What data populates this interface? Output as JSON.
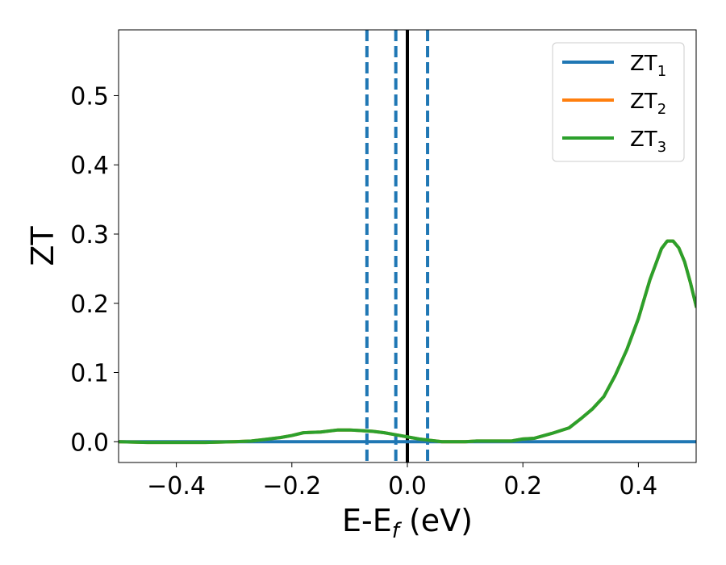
{
  "chart_data": {
    "type": "line",
    "title": "",
    "xlabel": {
      "main": "E-E",
      "sub": "f",
      "unit": " (eV)"
    },
    "ylabel": "ZT",
    "xlim": [
      -0.5,
      0.5
    ],
    "ylim": [
      -0.03,
      0.595
    ],
    "xticks": [
      -0.4,
      -0.2,
      0.0,
      0.2,
      0.4
    ],
    "xtick_labels": [
      "−0.4",
      "−0.2",
      "0.0",
      "0.2",
      "0.4"
    ],
    "yticks": [
      0.0,
      0.1,
      0.2,
      0.3,
      0.4,
      0.5
    ],
    "ytick_labels": [
      "0.0",
      "0.1",
      "0.2",
      "0.3",
      "0.4",
      "0.5"
    ],
    "grid": false,
    "legend_position": "top-right",
    "vlines": [
      {
        "x": -0.07,
        "style": "dashed",
        "color": "#1f77b4"
      },
      {
        "x": -0.02,
        "style": "dashed",
        "color": "#1f77b4"
      },
      {
        "x": 0.0,
        "style": "solid",
        "color": "#000000"
      },
      {
        "x": 0.035,
        "style": "dashed",
        "color": "#1f77b4"
      }
    ],
    "series": [
      {
        "name": "ZT",
        "sub": "1",
        "color": "#1f77b4",
        "x": [
          -0.5,
          -0.25,
          0.0,
          0.25,
          0.5
        ],
        "y": [
          0.0,
          0.0,
          0.0,
          0.0,
          0.0
        ]
      },
      {
        "name": "ZT",
        "sub": "2",
        "color": "#ff7f0e",
        "x": [
          -0.5,
          -0.45,
          -0.4,
          -0.35,
          -0.3,
          -0.27,
          -0.25,
          -0.22,
          -0.2,
          -0.18,
          -0.15,
          -0.12,
          -0.1,
          -0.08,
          -0.06,
          -0.04,
          -0.02,
          0.0,
          0.02,
          0.04,
          0.06,
          0.08,
          0.1,
          0.12,
          0.15,
          0.18,
          0.2,
          0.22,
          0.25,
          0.28,
          0.3,
          0.32,
          0.34,
          0.36,
          0.38,
          0.4,
          0.42,
          0.44,
          0.45,
          0.46,
          0.47,
          0.48,
          0.49,
          0.5
        ],
        "y": [
          0.0,
          -0.001,
          -0.001,
          -0.001,
          0.0,
          0.001,
          0.003,
          0.006,
          0.009,
          0.013,
          0.014,
          0.017,
          0.017,
          0.016,
          0.015,
          0.013,
          0.01,
          0.007,
          0.004,
          0.002,
          0.0,
          0.0,
          0.0,
          0.001,
          0.001,
          0.001,
          0.004,
          0.005,
          0.012,
          0.02,
          0.033,
          0.047,
          0.065,
          0.096,
          0.133,
          0.178,
          0.234,
          0.279,
          0.29,
          0.29,
          0.28,
          0.26,
          0.23,
          0.196
        ]
      },
      {
        "name": "ZT",
        "sub": "3",
        "color": "#2ca02c",
        "x": [
          -0.5,
          -0.45,
          -0.4,
          -0.35,
          -0.3,
          -0.27,
          -0.25,
          -0.22,
          -0.2,
          -0.18,
          -0.15,
          -0.12,
          -0.1,
          -0.08,
          -0.06,
          -0.04,
          -0.02,
          0.0,
          0.02,
          0.04,
          0.06,
          0.08,
          0.1,
          0.12,
          0.15,
          0.18,
          0.2,
          0.22,
          0.25,
          0.28,
          0.3,
          0.32,
          0.34,
          0.36,
          0.38,
          0.4,
          0.42,
          0.44,
          0.45,
          0.46,
          0.47,
          0.48,
          0.49,
          0.5
        ],
        "y": [
          0.0,
          -0.001,
          -0.001,
          -0.001,
          0.0,
          0.001,
          0.003,
          0.006,
          0.009,
          0.013,
          0.014,
          0.017,
          0.017,
          0.016,
          0.015,
          0.013,
          0.01,
          0.007,
          0.004,
          0.002,
          0.0,
          0.0,
          0.0,
          0.001,
          0.001,
          0.001,
          0.004,
          0.005,
          0.012,
          0.02,
          0.033,
          0.047,
          0.065,
          0.096,
          0.133,
          0.178,
          0.234,
          0.279,
          0.29,
          0.29,
          0.28,
          0.26,
          0.23,
          0.196
        ]
      }
    ]
  }
}
